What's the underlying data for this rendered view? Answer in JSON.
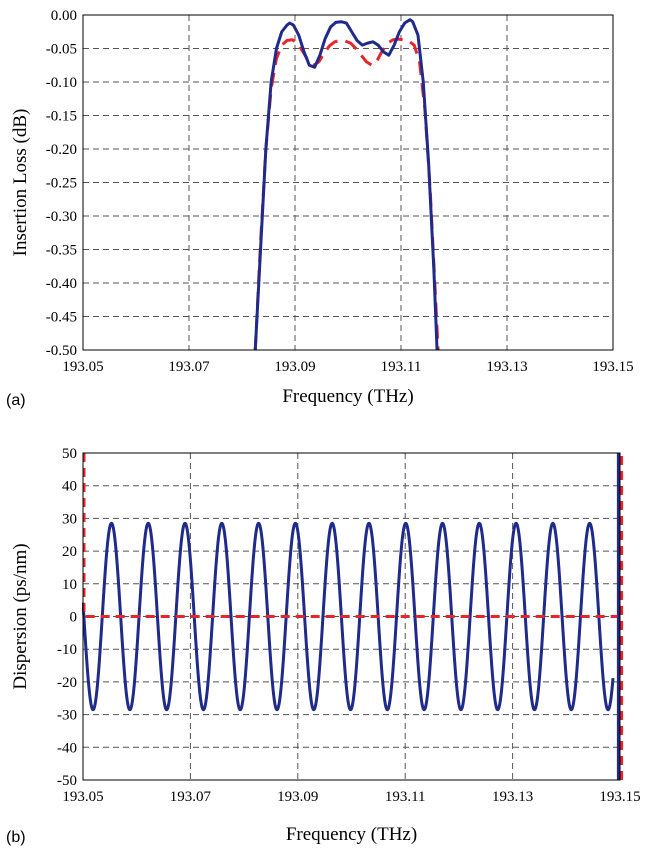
{
  "chart_data": [
    {
      "panel_label": "(a)",
      "type": "line",
      "xlabel": "Frequency (THz)",
      "ylabel": "Insertion Loss (dB)",
      "xlim": [
        193.05,
        193.15
      ],
      "ylim": [
        -0.5,
        0.0
      ],
      "xticks": [
        "193.05",
        "193.07",
        "193.09",
        "193.11",
        "193.13",
        "193.15"
      ],
      "yticks": [
        "0.00",
        "-0.05",
        "-0.10",
        "-0.15",
        "-0.20",
        "-0.25",
        "-0.30",
        "-0.35",
        "-0.40",
        "-0.45",
        "-0.50"
      ],
      "grid": true,
      "series": [
        {
          "color": "#1f2a8a",
          "style": "solid",
          "x": [
            193.0825,
            193.0835,
            193.0845,
            193.0855,
            193.0865,
            193.0875,
            193.0885,
            193.089,
            193.0897,
            193.0907,
            193.0917,
            193.0927,
            193.0937,
            193.0947,
            193.0957,
            193.0967,
            193.0977,
            193.0987,
            193.0997,
            193.1007,
            193.1017,
            193.1027,
            193.1037,
            193.1047,
            193.1057,
            193.1067,
            193.1077,
            193.1087,
            193.1097,
            193.1107,
            193.1117,
            193.1122,
            193.1132,
            193.1142,
            193.1152,
            193.1162,
            193.1168
          ],
          "y": [
            -0.5,
            -0.35,
            -0.2,
            -0.1,
            -0.05,
            -0.025,
            -0.015,
            -0.012,
            -0.015,
            -0.03,
            -0.055,
            -0.075,
            -0.078,
            -0.06,
            -0.035,
            -0.018,
            -0.011,
            -0.01,
            -0.012,
            -0.025,
            -0.038,
            -0.045,
            -0.042,
            -0.04,
            -0.045,
            -0.055,
            -0.06,
            -0.045,
            -0.025,
            -0.012,
            -0.007,
            -0.01,
            -0.03,
            -0.1,
            -0.22,
            -0.38,
            -0.5
          ]
        },
        {
          "color": "#e8252a",
          "style": "dashed",
          "x": [
            193.0825,
            193.0835,
            193.0845,
            193.0855,
            193.0865,
            193.0875,
            193.0885,
            193.0895,
            193.0905,
            193.0915,
            193.0925,
            193.0935,
            193.0945,
            193.0955,
            193.0965,
            193.0975,
            193.0985,
            193.0995,
            193.1005,
            193.1015,
            193.1025,
            193.1035,
            193.1045,
            193.1055,
            193.1065,
            193.1075,
            193.1085,
            193.1095,
            193.1105,
            193.1115,
            193.1125,
            193.1135,
            193.1145,
            193.1155,
            193.1165,
            193.117
          ],
          "y": [
            -0.5,
            -0.34,
            -0.2,
            -0.11,
            -0.065,
            -0.045,
            -0.038,
            -0.037,
            -0.042,
            -0.055,
            -0.068,
            -0.075,
            -0.07,
            -0.057,
            -0.046,
            -0.04,
            -0.038,
            -0.039,
            -0.042,
            -0.05,
            -0.06,
            -0.07,
            -0.075,
            -0.068,
            -0.053,
            -0.042,
            -0.037,
            -0.036,
            -0.037,
            -0.039,
            -0.045,
            -0.07,
            -0.14,
            -0.26,
            -0.42,
            -0.5
          ]
        }
      ]
    },
    {
      "panel_label": "(b)",
      "type": "line",
      "xlabel": "Frequency (THz)",
      "ylabel": "Dispersion (ps/nm)",
      "xlim": [
        193.05,
        193.15
      ],
      "ylim": [
        -50,
        50
      ],
      "xticks": [
        "193.05",
        "193.07",
        "193.09",
        "193.11",
        "193.13",
        "193.15"
      ],
      "yticks": [
        "50",
        "40",
        "30",
        "20",
        "10",
        "0",
        "-10",
        "-20",
        "-30",
        "-40",
        "-50"
      ],
      "grid": true,
      "series": [
        {
          "color": "#1f2a8a",
          "style": "solid",
          "kind": "periodic",
          "amplitude": 28.5,
          "period_thz": 0.00685,
          "first_peak_thz": 193.0553,
          "x_start": 193.05,
          "x_end": 193.1487,
          "edge_x": 193.1497,
          "edge_y": [
            -50,
            50
          ]
        },
        {
          "color": "#e8252a",
          "style": "dashed",
          "kind": "flat",
          "value": 0,
          "x_start": 193.0505,
          "x_end": 193.1495,
          "edge_left_x": 193.05,
          "edge_left_y": [
            50,
            0
          ],
          "edge_right_x": 193.1503,
          "edge_right_y": [
            -50,
            50
          ]
        }
      ]
    }
  ]
}
